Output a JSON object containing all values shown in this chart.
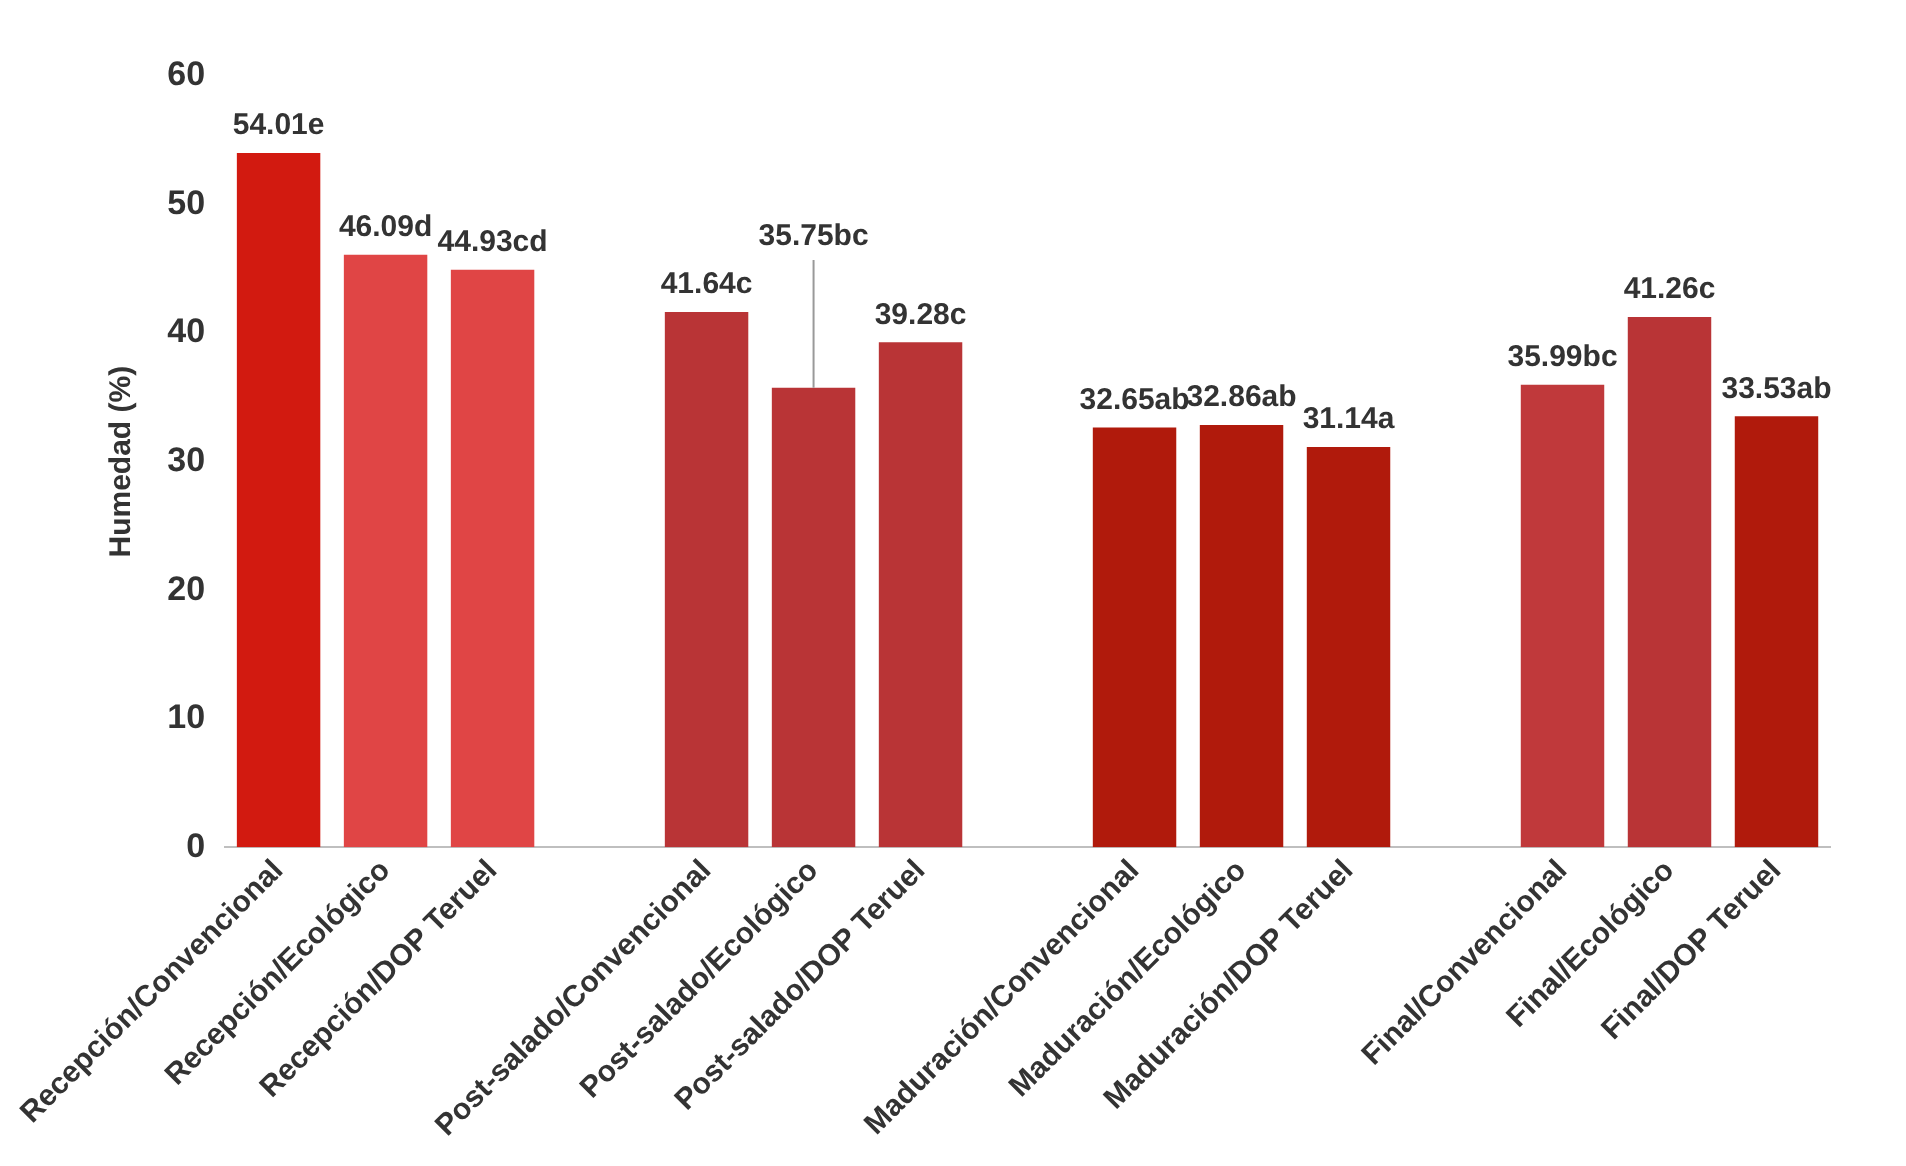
{
  "chart_data": {
    "type": "bar",
    "ylabel": "Humedad (%)",
    "categories": [
      "Recepción/Convencional",
      "Recepción/Ecológico",
      "Recepción/DOP Teruel",
      null,
      "Post-salado/Convencional",
      "Post-salado/Ecológico",
      "Post-salado/DOP Teruel",
      null,
      "Maduración/Convencional",
      "Maduración/Ecológico",
      "Maduración/DOP Teruel",
      null,
      "Final/Convencional",
      "Final/Ecológico",
      "Final/DOP Teruel"
    ],
    "values": [
      54.01,
      46.09,
      44.93,
      null,
      41.64,
      35.75,
      39.28,
      null,
      32.65,
      32.86,
      31.14,
      null,
      35.99,
      41.26,
      33.53
    ],
    "value_labels": [
      "54.01e",
      "46.09d",
      "44.93cd",
      null,
      "41.64c",
      "35.75bc",
      "39.28c",
      null,
      "32.65ab",
      "32.86ab",
      "31.14a",
      null,
      "35.99bc",
      "41.26c",
      "33.53ab"
    ],
    "colors": [
      "#d21a10",
      "#e04545",
      "#e04545",
      "#ffffff",
      "#b93436",
      "#b93436",
      "#b93436",
      "#ffffff",
      "#b01a0c",
      "#b01a0c",
      "#b01a0c",
      "#ffffff",
      "#c0393b",
      "#b93436",
      "#b01a0c"
    ],
    "ylim": [
      0,
      60
    ],
    "yticks": [
      0,
      10,
      20,
      30,
      40,
      50,
      60
    ],
    "grid": false,
    "legend": false
  }
}
